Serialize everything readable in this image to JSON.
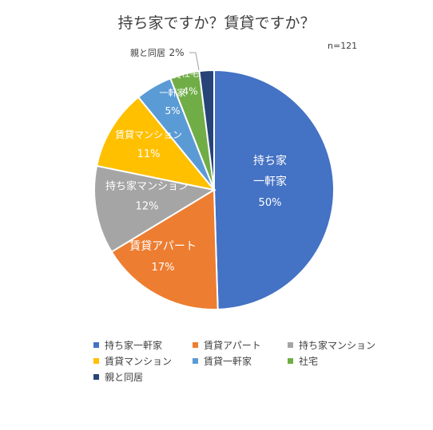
{
  "chart_data": {
    "type": "pie",
    "title": "持ち家ですか？賃貸ですか？",
    "note": "n=121",
    "slices": [
      {
        "name": "持ち家一軒家",
        "label_lines": [
          "持ち家",
          "一軒家"
        ],
        "value": 50,
        "value_label": "50%",
        "color": "#4472C4"
      },
      {
        "name": "賃貸アパート",
        "label_lines": [
          "賃貸アパート"
        ],
        "value": 17,
        "value_label": "17%",
        "color": "#ED7D31"
      },
      {
        "name": "持ち家マンション",
        "label_lines": [
          "持ち家マンション"
        ],
        "value": 12,
        "value_label": "12%",
        "color": "#A5A5A5"
      },
      {
        "name": "賃貸マンション",
        "label_lines": [
          "賃貸マンション"
        ],
        "value": 11,
        "value_label": "11%",
        "color": "#FFC000"
      },
      {
        "name": "賃貸一軒家",
        "label_lines": [
          "賃貸",
          "一軒家"
        ],
        "value": 5,
        "value_label": "5%",
        "color": "#5B9BD5"
      },
      {
        "name": "社宅",
        "label_lines": [
          "社宅"
        ],
        "value": 4,
        "value_label": "4%",
        "color": "#70AD47"
      },
      {
        "name": "親と同居",
        "label_lines": [
          "親と同居"
        ],
        "value": 2,
        "value_label": "2%",
        "color": "#264478"
      }
    ],
    "legend_position": "bottom"
  }
}
